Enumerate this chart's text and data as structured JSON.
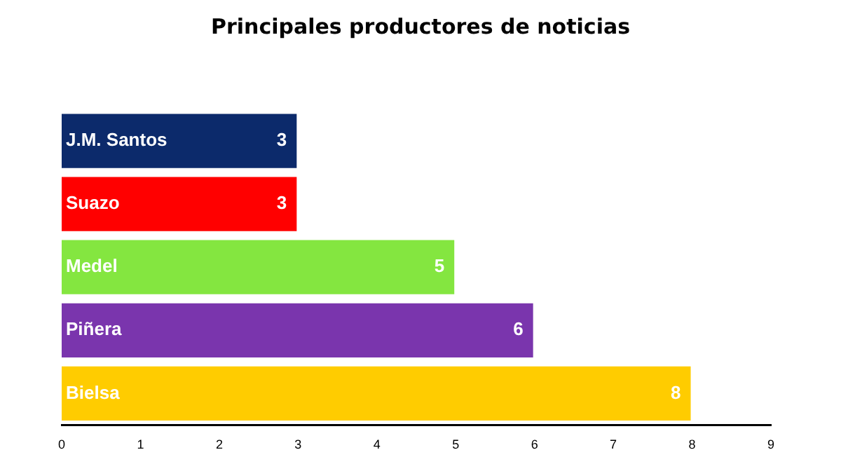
{
  "chart_data": {
    "type": "bar",
    "orientation": "horizontal",
    "title": "Principales productores de noticias",
    "categories": [
      "J.M. Santos",
      "Suazo",
      "Medel",
      "Piñera",
      "Bielsa"
    ],
    "values": [
      3,
      3,
      5,
      6,
      8
    ],
    "colors": [
      "#0c2a6b",
      "#ff0000",
      "#84e640",
      "#7a35ad",
      "#ffcc00"
    ],
    "xlim": [
      0,
      9
    ],
    "xticks": [
      0,
      1,
      2,
      3,
      4,
      5,
      6,
      7,
      8,
      9
    ],
    "grid": false,
    "legend": false,
    "data_labels": true
  }
}
